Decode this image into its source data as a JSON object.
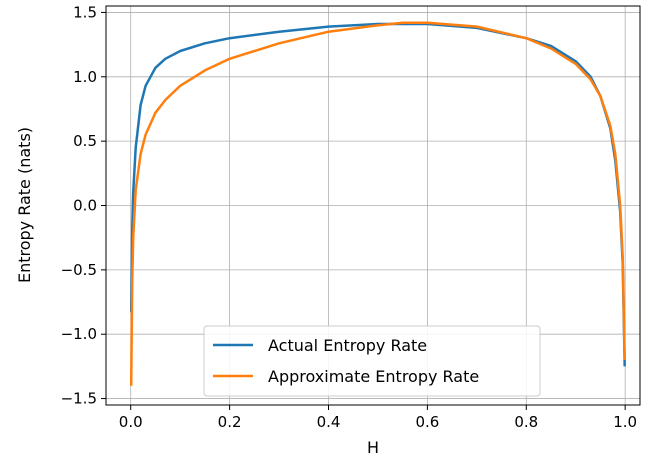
{
  "chart_data": {
    "type": "line",
    "title": "",
    "xlabel": "H",
    "ylabel": "Entropy Rate (nats)",
    "xlim": [
      -0.05,
      1.03
    ],
    "ylim": [
      -1.55,
      1.55
    ],
    "xticks": [
      0.0,
      0.2,
      0.4,
      0.6,
      0.8,
      1.0
    ],
    "xtick_labels": [
      "0.0",
      "0.2",
      "0.4",
      "0.6",
      "0.8",
      "1.0"
    ],
    "yticks": [
      -1.5,
      -1.0,
      -0.5,
      0.0,
      0.5,
      1.0,
      1.5
    ],
    "ytick_labels": [
      "−1.5",
      "−1.0",
      "−0.5",
      "0.0",
      "0.5",
      "1.0",
      "1.5"
    ],
    "grid": true,
    "legend_position": "lower-center",
    "series": [
      {
        "name": "Actual Entropy Rate",
        "color": "#1f77b4",
        "x": [
          0.001,
          0.003,
          0.005,
          0.01,
          0.02,
          0.03,
          0.05,
          0.07,
          0.1,
          0.15,
          0.2,
          0.3,
          0.4,
          0.5,
          0.6,
          0.7,
          0.8,
          0.85,
          0.9,
          0.93,
          0.95,
          0.97,
          0.98,
          0.99,
          0.995,
          0.999
        ],
        "y": [
          -0.83,
          -0.2,
          0.1,
          0.45,
          0.78,
          0.93,
          1.07,
          1.14,
          1.2,
          1.26,
          1.3,
          1.35,
          1.39,
          1.41,
          1.41,
          1.38,
          1.3,
          1.24,
          1.12,
          1.0,
          0.85,
          0.6,
          0.35,
          -0.05,
          -0.45,
          -1.25
        ]
      },
      {
        "name": "Approximate Entropy Rate",
        "color": "#ff7f0e",
        "x": [
          0.001,
          0.003,
          0.005,
          0.01,
          0.02,
          0.03,
          0.05,
          0.07,
          0.1,
          0.15,
          0.2,
          0.3,
          0.4,
          0.5,
          0.55,
          0.6,
          0.7,
          0.8,
          0.85,
          0.9,
          0.93,
          0.95,
          0.97,
          0.98,
          0.99,
          0.995,
          0.999
        ],
        "y": [
          -1.4,
          -0.6,
          -0.25,
          0.12,
          0.4,
          0.55,
          0.72,
          0.82,
          0.93,
          1.05,
          1.14,
          1.26,
          1.35,
          1.4,
          1.42,
          1.42,
          1.39,
          1.3,
          1.22,
          1.1,
          0.98,
          0.85,
          0.62,
          0.4,
          0.0,
          -0.4,
          -1.2
        ]
      }
    ]
  }
}
